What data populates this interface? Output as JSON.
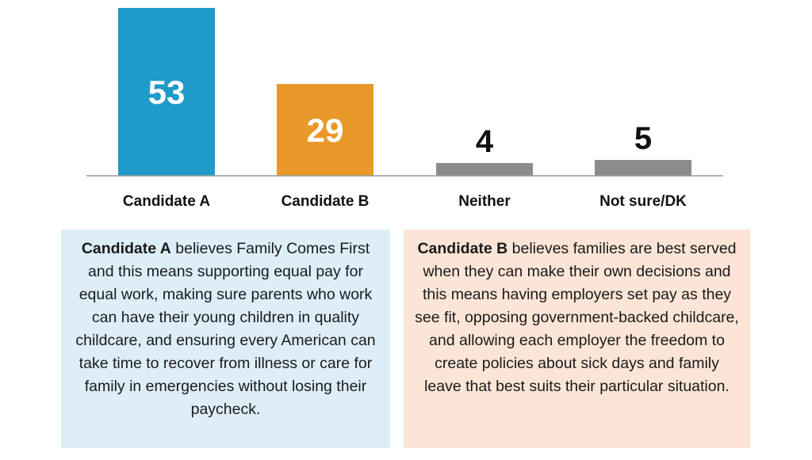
{
  "chart_data": {
    "type": "bar",
    "categories": [
      "Candidate A",
      "Candidate B",
      "Neither",
      "Not sure/DK"
    ],
    "values": [
      53,
      29,
      4,
      5
    ],
    "colors": [
      "#1f9ac9",
      "#e8992a",
      "#8c8c8c",
      "#8c8c8c"
    ],
    "title": "",
    "xlabel": "",
    "ylabel": "",
    "ylim": [
      0,
      53
    ],
    "grid": false,
    "legend": "none"
  },
  "descriptions": {
    "a": {
      "name": "Candidate A",
      "text": "believes Family Comes First and this means supporting equal pay for equal work, making sure parents who work can have their young children in quality childcare, and ensuring every American can take time to recover from illness or care for family in emergencies without losing their paycheck."
    },
    "b": {
      "name": "Candidate B",
      "text": "believes families are best served when they can make their own decisions and this means having employers set pay as they see fit, opposing government-backed childcare, and allowing each employer the freedom to create policies about sick days and family leave that best suits their particular situation."
    }
  }
}
